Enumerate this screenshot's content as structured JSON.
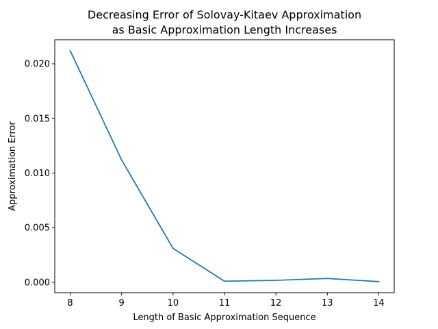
{
  "chart_data": {
    "type": "line",
    "title_lines": [
      "Decreasing Error of Solovay-Kitaev Approximation",
      "as Basic Approximation Length Increases"
    ],
    "xlabel": "Length of Basic Approximation Sequence",
    "ylabel": "Approximation Error",
    "x": [
      8,
      9,
      10,
      11,
      12,
      13,
      14
    ],
    "series": [
      {
        "values": [
          0.0212,
          0.0112,
          0.0031,
          0.0001,
          0.00018,
          0.00035,
          6e-05
        ],
        "color": "#1f77b4"
      }
    ],
    "xlim": [
      7.7,
      14.3
    ],
    "ylim": [
      -0.00095,
      0.0222
    ],
    "xticks": [
      8,
      9,
      10,
      11,
      12,
      13,
      14
    ],
    "yticks": [
      0.0,
      0.005,
      0.01,
      0.015,
      0.02
    ],
    "ytick_labels": [
      "0.000",
      "0.005",
      "0.010",
      "0.015",
      "0.020"
    ],
    "grid": false,
    "legend": "none"
  }
}
